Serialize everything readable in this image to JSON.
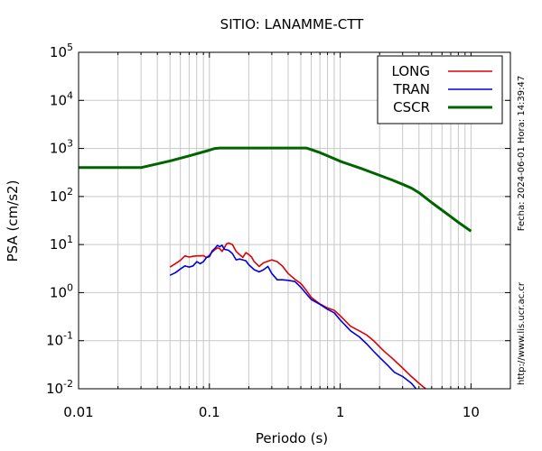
{
  "chart_data": {
    "type": "line",
    "title": "SITIO: LANAMME-CTT",
    "xlabel": "Periodo (s)",
    "ylabel": "PSA (cm/s2)",
    "x_scale": "log",
    "y_scale": "log",
    "xlim": [
      0.01,
      20
    ],
    "ylim": [
      0.01,
      100000
    ],
    "x_ticks": [
      {
        "value": 0.01,
        "label": "0.01"
      },
      {
        "value": 0.1,
        "label": "0.1"
      },
      {
        "value": 1,
        "label": "1"
      },
      {
        "value": 10,
        "label": "10"
      }
    ],
    "y_ticks": [
      {
        "value": 0.01,
        "base": "10",
        "exp": "-2"
      },
      {
        "value": 0.1,
        "base": "10",
        "exp": "-1"
      },
      {
        "value": 1,
        "base": "10",
        "exp": "0"
      },
      {
        "value": 10,
        "base": "10",
        "exp": "1"
      },
      {
        "value": 100,
        "base": "10",
        "exp": "2"
      },
      {
        "value": 1000,
        "base": "10",
        "exp": "3"
      },
      {
        "value": 10000,
        "base": "10",
        "exp": "4"
      },
      {
        "value": 100000,
        "base": "10",
        "exp": "5"
      }
    ],
    "grid": true,
    "legend_position": "top-right",
    "series": [
      {
        "name": "LONG",
        "color": "#e00000",
        "x": [
          0.05,
          0.055,
          0.06,
          0.065,
          0.07,
          0.075,
          0.08,
          0.085,
          0.09,
          0.095,
          0.1,
          0.105,
          0.11,
          0.115,
          0.12,
          0.125,
          0.13,
          0.135,
          0.14,
          0.15,
          0.16,
          0.17,
          0.18,
          0.19,
          0.2,
          0.21,
          0.22,
          0.24,
          0.26,
          0.28,
          0.3,
          0.33,
          0.36,
          0.4,
          0.45,
          0.5,
          0.55,
          0.6,
          0.7,
          0.8,
          0.9,
          1.0,
          1.2,
          1.4,
          1.6,
          1.8,
          2.0,
          2.2,
          2.5,
          3.0,
          3.5,
          4.0,
          4.5
        ],
        "y": [
          3.4,
          4.0,
          4.7,
          5.8,
          5.5,
          5.7,
          5.8,
          5.8,
          5.9,
          5.4,
          6.0,
          7.0,
          7.8,
          8.5,
          8.2,
          7.2,
          8.5,
          10.3,
          10.8,
          10.0,
          7.2,
          6.2,
          5.4,
          6.8,
          6.2,
          5.5,
          4.4,
          3.5,
          4.2,
          4.5,
          4.8,
          4.4,
          3.6,
          2.5,
          1.9,
          1.55,
          1.12,
          0.8,
          0.58,
          0.48,
          0.43,
          0.33,
          0.2,
          0.16,
          0.13,
          0.1,
          0.075,
          0.058,
          0.043,
          0.027,
          0.018,
          0.013,
          0.01
        ]
      },
      {
        "name": "TRAN",
        "color": "#0000e0",
        "x": [
          0.05,
          0.055,
          0.06,
          0.065,
          0.07,
          0.075,
          0.08,
          0.085,
          0.09,
          0.095,
          0.1,
          0.105,
          0.11,
          0.115,
          0.12,
          0.125,
          0.13,
          0.14,
          0.15,
          0.16,
          0.17,
          0.18,
          0.19,
          0.2,
          0.22,
          0.24,
          0.26,
          0.28,
          0.3,
          0.33,
          0.36,
          0.4,
          0.45,
          0.5,
          0.55,
          0.6,
          0.7,
          0.8,
          0.9,
          1.0,
          1.2,
          1.4,
          1.6,
          1.8,
          2.0,
          2.3,
          2.6,
          3.0,
          3.5,
          3.8
        ],
        "y": [
          2.3,
          2.6,
          3.1,
          3.6,
          3.4,
          3.6,
          4.4,
          4.0,
          4.4,
          5.4,
          5.6,
          7.4,
          8.3,
          9.6,
          9.0,
          9.7,
          8.0,
          7.6,
          6.5,
          4.8,
          5.0,
          4.8,
          4.6,
          3.8,
          3.0,
          2.7,
          3.0,
          3.5,
          2.5,
          1.85,
          1.85,
          1.8,
          1.7,
          1.3,
          0.95,
          0.72,
          0.57,
          0.45,
          0.38,
          0.27,
          0.16,
          0.12,
          0.085,
          0.06,
          0.045,
          0.031,
          0.022,
          0.018,
          0.013,
          0.01
        ]
      },
      {
        "name": "CSCR",
        "color": "#006400",
        "x": [
          0.01,
          0.03,
          0.05,
          0.07,
          0.1,
          0.11,
          0.12,
          0.15,
          0.2,
          0.3,
          0.4,
          0.5,
          0.55,
          0.6,
          0.7,
          0.8,
          1.0,
          1.5,
          2.0,
          2.5,
          3.0,
          3.5,
          4.0,
          5.0,
          6.0,
          7.0,
          8.0,
          10.0
        ],
        "y": [
          400,
          400,
          550,
          700,
          920,
          1000,
          1020,
          1020,
          1020,
          1020,
          1020,
          1020,
          1020,
          950,
          820,
          700,
          540,
          370,
          275,
          220,
          180,
          150,
          120,
          75,
          52,
          38,
          29,
          19
        ]
      }
    ],
    "side_note_date": "Fecha: 2024-06-01  Hora: 14:39:47",
    "side_note_url": "http://www.lis.ucr.ac.cr"
  }
}
